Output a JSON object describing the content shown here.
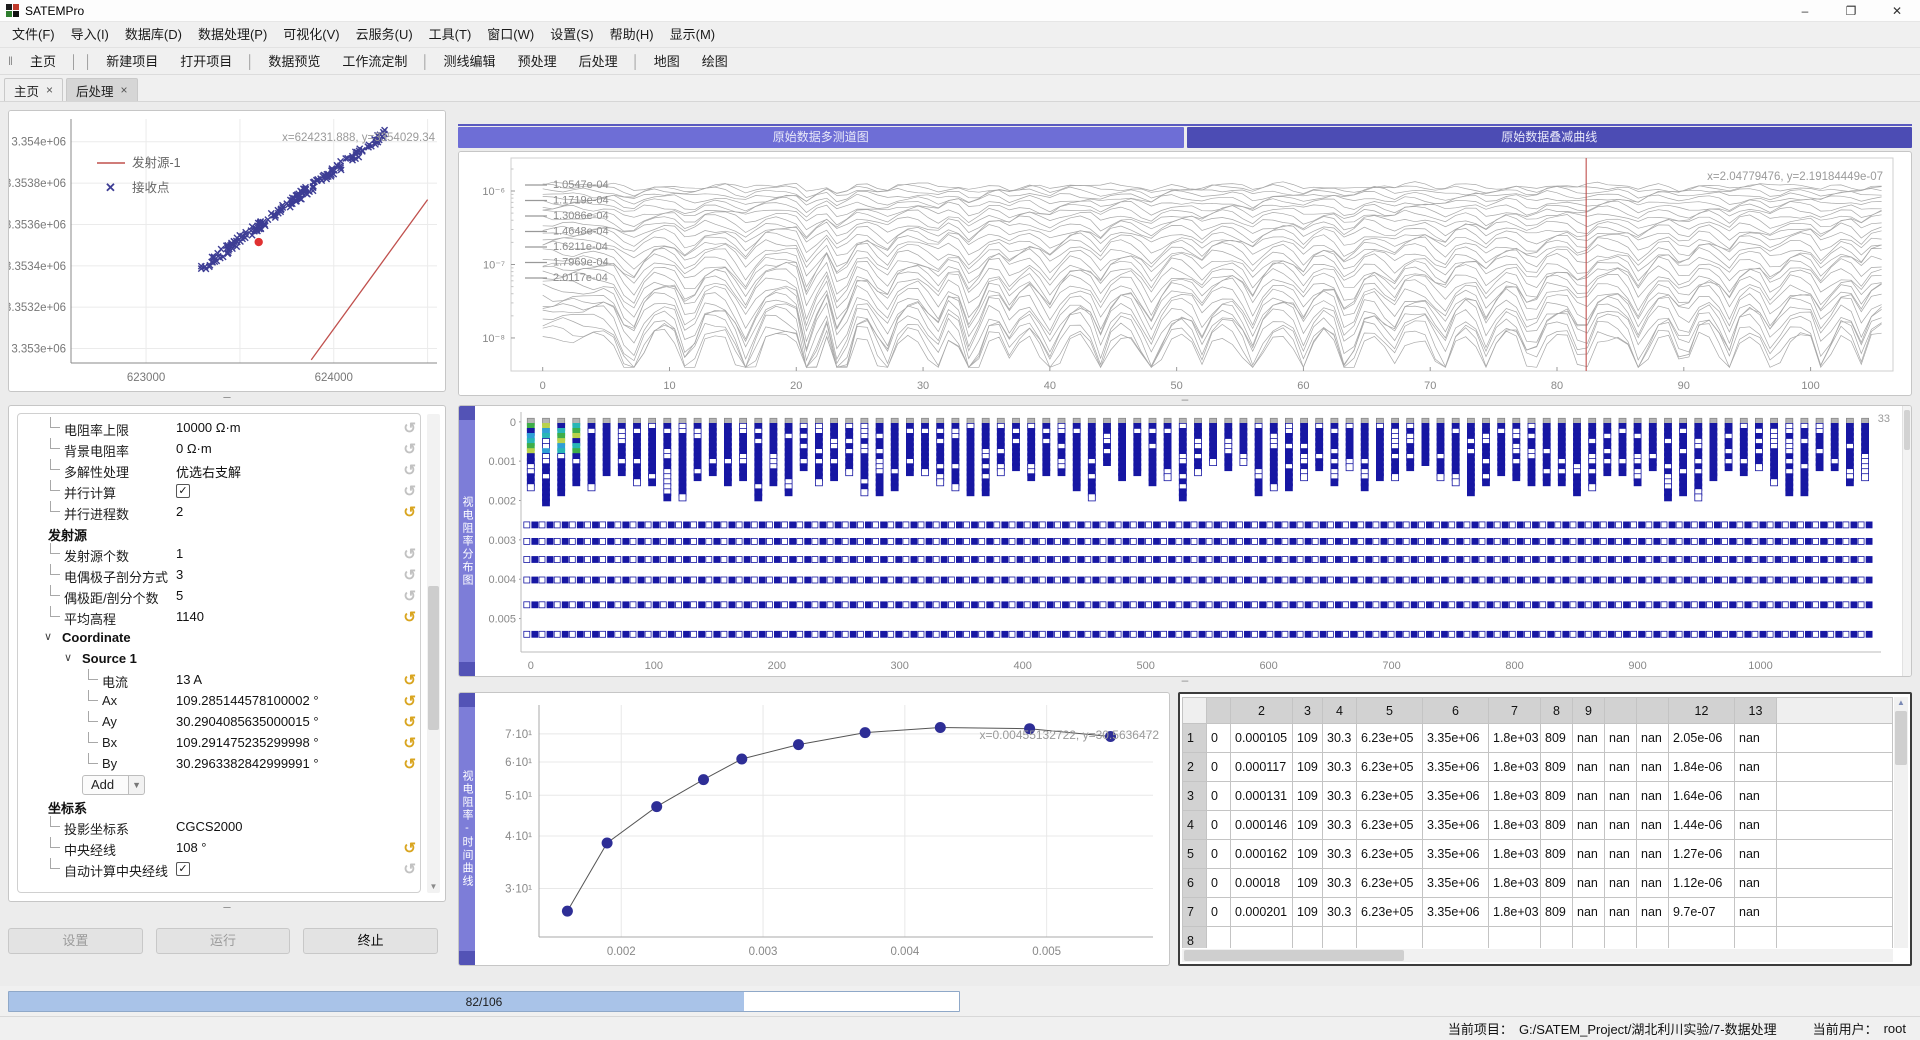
{
  "window": {
    "title": "SATEMPro",
    "controls": {
      "minimize": "–",
      "restore": "❐",
      "close": "✕"
    }
  },
  "menu": {
    "items": [
      "文件(F)",
      "导入(I)",
      "数据库(D)",
      "数据处理(P)",
      "可视化(V)",
      "云服务(U)",
      "工具(T)",
      "窗口(W)",
      "设置(S)",
      "帮助(H)",
      "显示(M)"
    ]
  },
  "toolbar": {
    "groups": [
      [
        "主页"
      ],
      [
        "新建项目",
        "打开项目"
      ],
      [
        "数据预览",
        "工作流定制"
      ],
      [
        "测线编辑",
        "预处理",
        "后处理"
      ],
      [
        "地图",
        "绘图"
      ]
    ]
  },
  "tabs": [
    {
      "label": "主页",
      "close": "×",
      "active": false
    },
    {
      "label": "后处理",
      "close": "×",
      "active": true
    }
  ],
  "right_tabs": [
    {
      "label": "原始数据多测道图"
    },
    {
      "label": "原始数据叠减曲线"
    }
  ],
  "param_panel": {
    "rows": [
      {
        "type": "item",
        "indent": 1,
        "label": "电阻率上限",
        "value": "10000 Ω·m",
        "undo": "gray"
      },
      {
        "type": "item",
        "indent": 1,
        "label": "背景电阻率",
        "value": "0 Ω·m",
        "undo": "gray"
      },
      {
        "type": "item",
        "indent": 1,
        "label": "多解性处理",
        "value": "优选右支解",
        "undo": "gray"
      },
      {
        "type": "check",
        "indent": 1,
        "label": "并行计算",
        "checked": true,
        "undo": "gray"
      },
      {
        "type": "item",
        "indent": 1,
        "label": "并行进程数",
        "value": "2",
        "undo": "gold"
      },
      {
        "type": "group",
        "level": 0,
        "label": "发射源",
        "expander": false
      },
      {
        "type": "item",
        "indent": 1,
        "label": "发射源个数",
        "value": "1",
        "undo": "gray"
      },
      {
        "type": "item",
        "indent": 1,
        "label": "电偶极子剖分方式",
        "value": "3",
        "undo": "gray"
      },
      {
        "type": "item",
        "indent": 1,
        "label": "偶极距/剖分个数",
        "value": "5",
        "undo": "gray"
      },
      {
        "type": "item",
        "indent": 1,
        "label": "平均高程",
        "value": "1140",
        "undo": "gold"
      },
      {
        "type": "group",
        "level": 0,
        "label": "Coordinate",
        "expander": true
      },
      {
        "type": "group",
        "level": 1,
        "label": "Source 1",
        "expander": true
      },
      {
        "type": "item",
        "indent": 3,
        "label": "电流",
        "value": "13 A",
        "undo": "gold"
      },
      {
        "type": "item",
        "indent": 3,
        "label": "Ax",
        "value": "109.285144578100002 °",
        "undo": "gold"
      },
      {
        "type": "item",
        "indent": 3,
        "label": "Ay",
        "value": "30.2904085635000015 °",
        "undo": "gold"
      },
      {
        "type": "item",
        "indent": 3,
        "label": "Bx",
        "value": "109.291475235299998 °",
        "undo": "gold"
      },
      {
        "type": "item",
        "indent": 3,
        "label": "By",
        "value": "30.2963382842999991 °",
        "undo": "gold"
      },
      {
        "type": "button",
        "label": "Add"
      },
      {
        "type": "group",
        "level": 0,
        "label": "坐标系",
        "expander": false
      },
      {
        "type": "item",
        "indent": 1,
        "label": "投影坐标系",
        "value": "CGCS2000",
        "undo": null
      },
      {
        "type": "item",
        "indent": 1,
        "label": "中央经线",
        "value": "108 °",
        "undo": "gold"
      },
      {
        "type": "check",
        "indent": 1,
        "label": "自动计算中央经线",
        "checked": true,
        "undo": "gray"
      }
    ],
    "buttons": [
      {
        "label": "设置",
        "enabled": false
      },
      {
        "label": "运行",
        "enabled": false
      },
      {
        "label": "终止",
        "enabled": true
      }
    ]
  },
  "chart_data": [
    {
      "name": "station-map",
      "type": "scatter",
      "xlim": [
        622600,
        624550
      ],
      "ylim": [
        3352930,
        3354110
      ],
      "x_ticks": [
        623000,
        624000
      ],
      "x_grid": [
        623000,
        623500,
        624000,
        624500
      ],
      "y_ticks": [
        {
          "v": 3354000,
          "label": "3.354e+06"
        },
        {
          "v": 3353800,
          "label": "3.3538e+06"
        },
        {
          "v": 3353600,
          "label": "3.3536e+06"
        },
        {
          "v": 3353400,
          "label": "3.3534e+06"
        },
        {
          "v": 3353200,
          "label": "3.3532e+06"
        },
        {
          "v": 3353000,
          "label": "3.353e+06"
        }
      ],
      "legend": [
        {
          "label": "发射源-1",
          "marker": "line",
          "color": "#c0504d"
        },
        {
          "label": "接收点",
          "marker": "x",
          "color": "#3d3d94"
        }
      ],
      "receiver_band": {
        "from": [
          623290,
          3353385
        ],
        "to": [
          624285,
          3354048
        ],
        "count": 175,
        "jitter": 19
      },
      "source_line": {
        "from": [
          623880,
          3352945
        ],
        "to": [
          624500,
          3353720
        ]
      },
      "highlight_point": [
        623600,
        3353515
      ],
      "annotation": "x=624231.888, y=3354029.34"
    },
    {
      "name": "raw-multichannel",
      "type": "line",
      "yscale": "log",
      "xlim": [
        -2.5,
        106.5
      ],
      "x_ticks": [
        0,
        10,
        20,
        30,
        40,
        50,
        60,
        70,
        80,
        90,
        100
      ],
      "ylog_lim": [
        -8.45,
        -5.55
      ],
      "y_ticks": [
        {
          "exp": -6,
          "label": "10⁻⁶"
        },
        {
          "exp": -7,
          "label": "10⁻⁷"
        },
        {
          "exp": -8,
          "label": "10⁻⁸"
        }
      ],
      "n_lines": 32,
      "line_color": "#a8a8a8",
      "legend_values": [
        "1.0547e-04",
        "1.1719e-04",
        "1.3086e-04",
        "1.4648e-04",
        "1.6211e-04",
        "1.7969e-04",
        "2.0117e-04"
      ],
      "cursor_x": 82.3,
      "cursor_color": "#c0504d",
      "annotation": "x=2.04779476, y=2.19184449e-07"
    },
    {
      "name": "apparent-resistivity-map",
      "type": "heatmap",
      "ylabel": "视电阻率分布图",
      "xlim": [
        -8,
        1098
      ],
      "x_ticks": [
        0,
        100,
        200,
        300,
        400,
        500,
        600,
        700,
        800,
        900,
        1000
      ],
      "ylim": [
        -0.00025,
        0.00585
      ],
      "y_ticks": [
        0,
        0.001,
        0.002,
        0.003,
        0.004,
        0.005
      ],
      "columns": 89,
      "col_spacing": 12.33,
      "cell_color": "#1717a3",
      "top_row_color": "#b5b5b5",
      "accent_colors": [
        "#29b6b6",
        "#3fae49",
        "#b9d24b",
        "#2f9fd6"
      ],
      "band_rows": [
        0.00262,
        0.00304,
        0.0035,
        0.00402,
        0.00465,
        0.0054
      ],
      "annotation_fragment": "33"
    },
    {
      "name": "apparent-resistivity-time-curve",
      "type": "line",
      "ylabel": "视电阻率-时间曲线",
      "x": [
        0.00162,
        0.0019,
        0.00225,
        0.00258,
        0.00285,
        0.00325,
        0.00372,
        0.00425,
        0.00488,
        0.00545
      ],
      "y": [
        26.5,
        38.5,
        47,
        54.5,
        61,
        66,
        70.5,
        72.5,
        72,
        69
      ],
      "xlim": [
        0.00142,
        0.00575
      ],
      "ylim_log": [
        23,
        82
      ],
      "x_ticks": [
        0.002,
        0.003,
        0.004,
        0.005
      ],
      "y_ticks": [
        {
          "v": 70,
          "label": "7·10¹"
        },
        {
          "v": 60,
          "label": "6·10¹"
        },
        {
          "v": 50,
          "label": "5·10¹"
        },
        {
          "v": 40,
          "label": "4·10¹"
        },
        {
          "v": 30,
          "label": "3·10¹"
        }
      ],
      "point_color": "#2e2e96",
      "annotation": "x=0.00455132722, y=30.5636472"
    }
  ],
  "table": {
    "headers": [
      "",
      "2",
      "3",
      "4",
      "5",
      "6",
      "7",
      "8",
      "9",
      "",
      "",
      "12",
      "13"
    ],
    "rows": [
      {
        "n": "1",
        "cells": [
          "0",
          "0.000105",
          "109",
          "30.3",
          "6.23e+05",
          "3.35e+06",
          "1.8e+03",
          "809",
          "nan",
          "nan",
          "nan",
          "2.05e-06",
          "nan"
        ]
      },
      {
        "n": "2",
        "cells": [
          "0",
          "0.000117",
          "109",
          "30.3",
          "6.23e+05",
          "3.35e+06",
          "1.8e+03",
          "809",
          "nan",
          "nan",
          "nan",
          "1.84e-06",
          "nan"
        ]
      },
      {
        "n": "3",
        "cells": [
          "0",
          "0.000131",
          "109",
          "30.3",
          "6.23e+05",
          "3.35e+06",
          "1.8e+03",
          "809",
          "nan",
          "nan",
          "nan",
          "1.64e-06",
          "nan"
        ]
      },
      {
        "n": "4",
        "cells": [
          "0",
          "0.000146",
          "109",
          "30.3",
          "6.23e+05",
          "3.35e+06",
          "1.8e+03",
          "809",
          "nan",
          "nan",
          "nan",
          "1.44e-06",
          "nan"
        ]
      },
      {
        "n": "5",
        "cells": [
          "0",
          "0.000162",
          "109",
          "30.3",
          "6.23e+05",
          "3.35e+06",
          "1.8e+03",
          "809",
          "nan",
          "nan",
          "nan",
          "1.27e-06",
          "nan"
        ]
      },
      {
        "n": "6",
        "cells": [
          "0",
          "0.00018",
          "109",
          "30.3",
          "6.23e+05",
          "3.35e+06",
          "1.8e+03",
          "809",
          "nan",
          "nan",
          "nan",
          "1.12e-06",
          "nan"
        ]
      },
      {
        "n": "7",
        "cells": [
          "0",
          "0.000201",
          "109",
          "30.3",
          "6.23e+05",
          "3.35e+06",
          "1.8e+03",
          "809",
          "nan",
          "nan",
          "nan",
          "9.7e-07",
          "nan"
        ]
      }
    ],
    "partial_row_n": "8"
  },
  "progress": {
    "text": "82/106",
    "fraction": 0.774
  },
  "statusbar": {
    "project_label": "当前项目：",
    "project": "G:/SATEM_Project/湖北利川实验/7-数据处理",
    "user_label": "当前用户：",
    "user": "root"
  }
}
